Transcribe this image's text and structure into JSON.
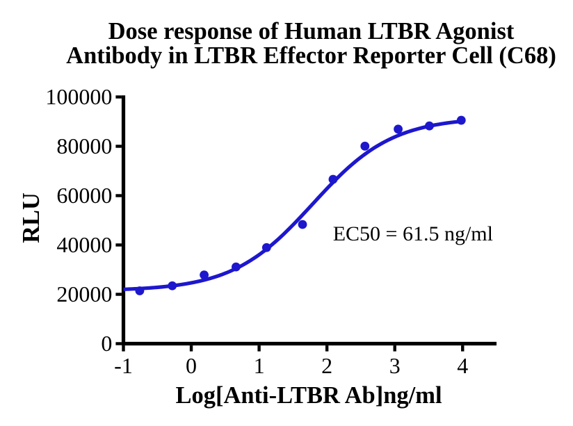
{
  "title": {
    "line1": "Dose response of Human LTBR Agonist",
    "line2": "Antibody in LTBR Effector Reporter Cell (C68)"
  },
  "annotation": "EC50 = 61.5 ng/ml",
  "chart_data": {
    "type": "scatter",
    "title": "Dose response of Human LTBR Agonist Antibody in LTBR Effector Reporter Cell (C68)",
    "xlabel": "Log[Anti-LTBR Ab]ng/ml",
    "ylabel": "RLU",
    "xlim": [
      -1,
      4.5
    ],
    "ylim": [
      0,
      100000
    ],
    "x_ticks": [
      "-1",
      "0",
      "1",
      "2",
      "3",
      "4"
    ],
    "x_tick_values": [
      -1,
      0,
      1,
      2,
      3,
      4
    ],
    "y_ticks": [
      "0",
      "20000",
      "40000",
      "60000",
      "80000",
      "100000"
    ],
    "y_tick_values": [
      0,
      20000,
      40000,
      60000,
      80000,
      100000
    ],
    "points_x": [
      -0.76,
      -0.28,
      0.19,
      0.66,
      1.11,
      1.64,
      2.09,
      2.56,
      3.05,
      3.51,
      3.98
    ],
    "points_y": [
      21400,
      23450,
      27850,
      31100,
      38950,
      48300,
      66600,
      80050,
      86950,
      88250,
      90550
    ],
    "fit_curve": {
      "model": "four_parameter_logistic",
      "bottom": 21400,
      "top": 91800,
      "log_ec50": 1.789,
      "hill": 0.736,
      "x_start": -1.0,
      "x_end": 3.98
    },
    "annotation": "EC50 = 61.5 ng/ml",
    "series_color": "#1d17cd",
    "axis_color": "#000000",
    "grid": false,
    "legend": false
  }
}
